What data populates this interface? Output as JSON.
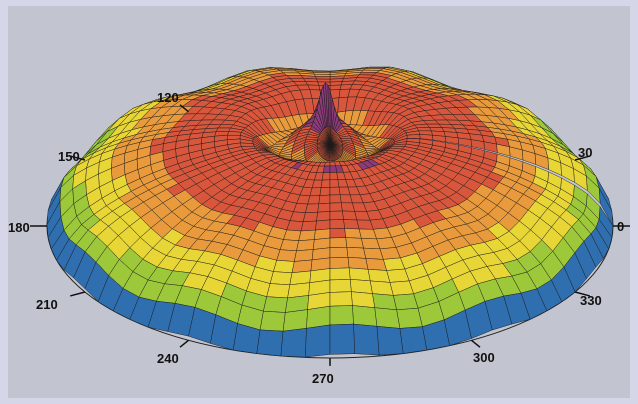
{
  "chart_data": {
    "type": "surface",
    "title": "",
    "xlabel": "",
    "ylabel": "",
    "angular_axis": {
      "unit": "degrees",
      "tick_labels": [
        "0",
        "30",
        "120",
        "150",
        "180",
        "210",
        "240",
        "270",
        "300",
        "330"
      ]
    },
    "grid": true,
    "colormap": [
      "#2f6fb0",
      "#48a83a",
      "#9cc839",
      "#e8d637",
      "#e89a3c",
      "#d8563c",
      "#8a3b78"
    ],
    "surface": {
      "description_of_shape": "dome",
      "peak_angle_deg": 100,
      "peak_relative_radius": 0.1
    }
  }
}
